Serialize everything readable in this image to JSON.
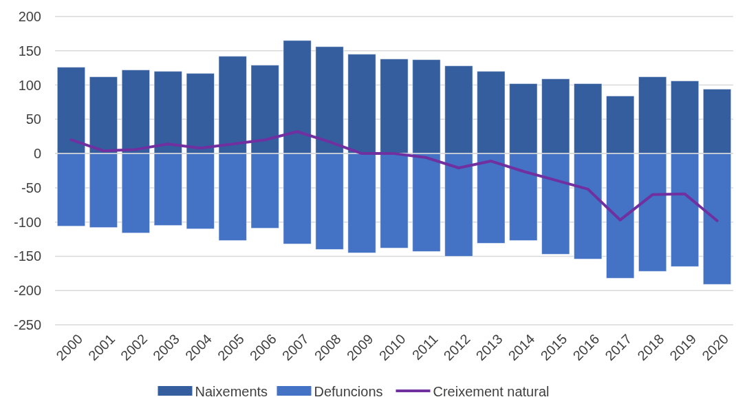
{
  "chart_data": {
    "type": "bar",
    "categories": [
      "2000",
      "2001",
      "2002",
      "2003",
      "2004",
      "2005",
      "2006",
      "2007",
      "2008",
      "2009",
      "2010",
      "2011",
      "2012",
      "2013",
      "2014",
      "2015",
      "2016",
      "2017",
      "2018",
      "2019",
      "2020"
    ],
    "series": [
      {
        "name": "Naixements",
        "color": "#355e9f",
        "values": [
          126,
          112,
          122,
          120,
          117,
          142,
          129,
          165,
          156,
          145,
          138,
          137,
          128,
          120,
          102,
          109,
          102,
          84,
          112,
          106,
          94
        ]
      },
      {
        "name": "Defuncions",
        "color": "#4472c4",
        "values": [
          -106,
          -108,
          -116,
          -105,
          -110,
          -127,
          -109,
          -132,
          -140,
          -145,
          -138,
          -143,
          -150,
          -131,
          -127,
          -147,
          -154,
          -182,
          -172,
          -165,
          -191
        ]
      },
      {
        "name": "Creixement natural",
        "type": "line",
        "color": "#7030a0",
        "values": [
          20,
          4,
          6,
          14,
          8,
          14,
          20,
          32,
          17,
          0,
          0,
          -6,
          -21,
          -11,
          -26,
          -39,
          -52,
          -97,
          -60,
          -59,
          -98
        ]
      }
    ],
    "stacked": true,
    "ylim": [
      -250,
      200
    ],
    "yticks": [
      -250,
      -200,
      -150,
      -100,
      -50,
      0,
      50,
      100,
      150,
      200
    ],
    "grid": "y",
    "legend": "bottom",
    "marker": "none",
    "line_style": "solid"
  }
}
